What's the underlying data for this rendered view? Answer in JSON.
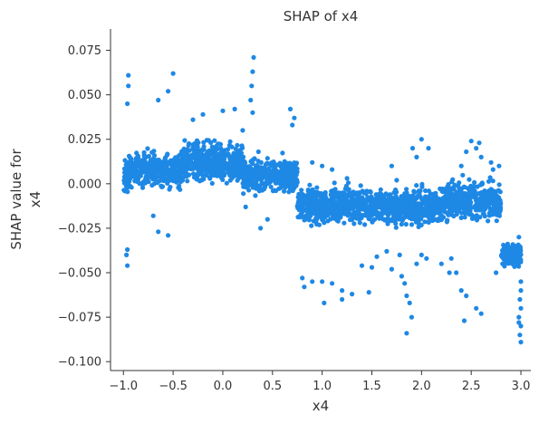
{
  "chart_data": {
    "type": "scatter",
    "title": "SHAP of x4",
    "xlabel": "x4",
    "ylabel_lines": [
      "SHAP value for",
      "x4"
    ],
    "xlim": [
      -1.13,
      3.1
    ],
    "ylim": [
      -0.105,
      0.087
    ],
    "x_ticks": [
      -1.0,
      -0.5,
      0.0,
      0.5,
      1.0,
      1.5,
      2.0,
      2.5,
      3.0
    ],
    "x_tick_labels": [
      "−1.0",
      "−0.5",
      "0.0",
      "0.5",
      "1.0",
      "1.5",
      "2.0",
      "2.5",
      "3.0"
    ],
    "y_ticks": [
      -0.1,
      -0.075,
      -0.05,
      -0.025,
      0.0,
      0.025,
      0.05,
      0.075
    ],
    "y_tick_labels": [
      "−0.100",
      "−0.075",
      "−0.050",
      "−0.025",
      "0.000",
      "0.025",
      "0.050",
      "0.075"
    ],
    "grid": false,
    "point_color": "#1E88E5",
    "clusters": [
      {
        "x": [
          -1.0,
          -0.95
        ],
        "y_center": 0.003,
        "y_spread": 0.016
      },
      {
        "x": [
          -0.95,
          -0.4
        ],
        "y_center": 0.008,
        "y_spread": 0.016
      },
      {
        "x": [
          -0.4,
          0.2
        ],
        "y_center": 0.012,
        "y_spread": 0.018
      },
      {
        "x": [
          0.2,
          0.75
        ],
        "y_center": 0.005,
        "y_spread": 0.016
      },
      {
        "x": [
          0.75,
          1.5
        ],
        "y_center": -0.012,
        "y_spread": 0.016
      },
      {
        "x": [
          1.5,
          2.2
        ],
        "y_center": -0.013,
        "y_spread": 0.016
      },
      {
        "x": [
          2.2,
          2.8
        ],
        "y_center": -0.01,
        "y_spread": 0.018
      },
      {
        "x": [
          2.8,
          3.0
        ],
        "y_center": -0.04,
        "y_spread": 0.01
      }
    ],
    "highlights": [
      {
        "x": -0.95,
        "y": 0.061
      },
      {
        "x": -0.95,
        "y": 0.055
      },
      {
        "x": -0.96,
        "y": 0.045
      },
      {
        "x": -0.96,
        "y": -0.037
      },
      {
        "x": -0.96,
        "y": -0.046
      },
      {
        "x": -0.97,
        "y": -0.04
      },
      {
        "x": -0.5,
        "y": 0.062
      },
      {
        "x": -0.55,
        "y": 0.052
      },
      {
        "x": -0.65,
        "y": 0.047
      },
      {
        "x": -0.7,
        "y": -0.018
      },
      {
        "x": -0.65,
        "y": -0.027
      },
      {
        "x": -0.55,
        "y": -0.029
      },
      {
        "x": -0.3,
        "y": 0.036
      },
      {
        "x": -0.2,
        "y": 0.039
      },
      {
        "x": 0.0,
        "y": 0.041
      },
      {
        "x": 0.12,
        "y": 0.042
      },
      {
        "x": 0.2,
        "y": 0.03
      },
      {
        "x": 0.31,
        "y": 0.071
      },
      {
        "x": 0.3,
        "y": 0.063
      },
      {
        "x": 0.29,
        "y": 0.055
      },
      {
        "x": 0.28,
        "y": 0.047
      },
      {
        "x": 0.3,
        "y": 0.04
      },
      {
        "x": 0.68,
        "y": 0.042
      },
      {
        "x": 0.72,
        "y": 0.037
      },
      {
        "x": 0.7,
        "y": 0.033
      },
      {
        "x": 0.38,
        "y": -0.025
      },
      {
        "x": 0.45,
        "y": -0.02
      },
      {
        "x": 0.23,
        "y": -0.013
      },
      {
        "x": 0.8,
        "y": -0.053
      },
      {
        "x": 0.82,
        "y": -0.058
      },
      {
        "x": 0.9,
        "y": -0.055
      },
      {
        "x": 1.0,
        "y": -0.055
      },
      {
        "x": 1.1,
        "y": -0.056
      },
      {
        "x": 1.3,
        "y": -0.062
      },
      {
        "x": 1.02,
        "y": -0.067
      },
      {
        "x": 1.2,
        "y": -0.06
      },
      {
        "x": 1.2,
        "y": -0.065
      },
      {
        "x": 1.47,
        "y": -0.061
      },
      {
        "x": 1.7,
        "y": -0.048
      },
      {
        "x": 1.8,
        "y": -0.052
      },
      {
        "x": 1.85,
        "y": -0.063
      },
      {
        "x": 1.88,
        "y": -0.067
      },
      {
        "x": 1.83,
        "y": -0.056
      },
      {
        "x": 1.9,
        "y": -0.075
      },
      {
        "x": 1.85,
        "y": -0.084
      },
      {
        "x": 1.78,
        "y": -0.04
      },
      {
        "x": 1.95,
        "y": -0.045
      },
      {
        "x": 2.0,
        "y": -0.04
      },
      {
        "x": 2.05,
        "y": -0.042
      },
      {
        "x": 1.91,
        "y": 0.02
      },
      {
        "x": 1.95,
        "y": 0.015
      },
      {
        "x": 2.0,
        "y": 0.025
      },
      {
        "x": 2.07,
        "y": 0.02
      },
      {
        "x": 1.7,
        "y": 0.01
      },
      {
        "x": 1.75,
        "y": 0.002
      },
      {
        "x": 2.5,
        "y": 0.024
      },
      {
        "x": 2.55,
        "y": 0.02
      },
      {
        "x": 2.6,
        "y": 0.015
      },
      {
        "x": 2.45,
        "y": 0.018
      },
      {
        "x": 2.4,
        "y": 0.01
      },
      {
        "x": 2.58,
        "y": 0.023
      },
      {
        "x": 2.4,
        "y": -0.06
      },
      {
        "x": 2.45,
        "y": -0.063
      },
      {
        "x": 2.55,
        "y": -0.07
      },
      {
        "x": 2.6,
        "y": -0.073
      },
      {
        "x": 2.43,
        "y": -0.077
      },
      {
        "x": 2.35,
        "y": -0.05
      },
      {
        "x": 2.75,
        "y": -0.05
      },
      {
        "x": 2.85,
        "y": -0.04
      },
      {
        "x": 2.98,
        "y": -0.03
      },
      {
        "x": 3.0,
        "y": -0.06
      },
      {
        "x": 2.99,
        "y": -0.065
      },
      {
        "x": 3.0,
        "y": -0.07
      },
      {
        "x": 2.98,
        "y": -0.075
      },
      {
        "x": 3.0,
        "y": -0.08
      },
      {
        "x": 2.99,
        "y": -0.085
      },
      {
        "x": 3.0,
        "y": -0.089
      },
      {
        "x": 2.98,
        "y": -0.078
      },
      {
        "x": 3.0,
        "y": -0.055
      },
      {
        "x": 2.7,
        "y": 0.012
      },
      {
        "x": 2.72,
        "y": 0.008
      },
      {
        "x": 2.78,
        "y": 0.01
      },
      {
        "x": 1.25,
        "y": 0.003
      },
      {
        "x": 1.1,
        "y": 0.008
      },
      {
        "x": 1.0,
        "y": 0.01
      },
      {
        "x": 0.9,
        "y": 0.012
      },
      {
        "x": 1.4,
        "y": -0.046
      },
      {
        "x": 1.5,
        "y": -0.047
      },
      {
        "x": 1.55,
        "y": -0.041
      },
      {
        "x": 1.65,
        "y": -0.038
      },
      {
        "x": 2.2,
        "y": -0.045
      },
      {
        "x": 2.3,
        "y": -0.042
      },
      {
        "x": 2.28,
        "y": -0.05
      }
    ]
  }
}
